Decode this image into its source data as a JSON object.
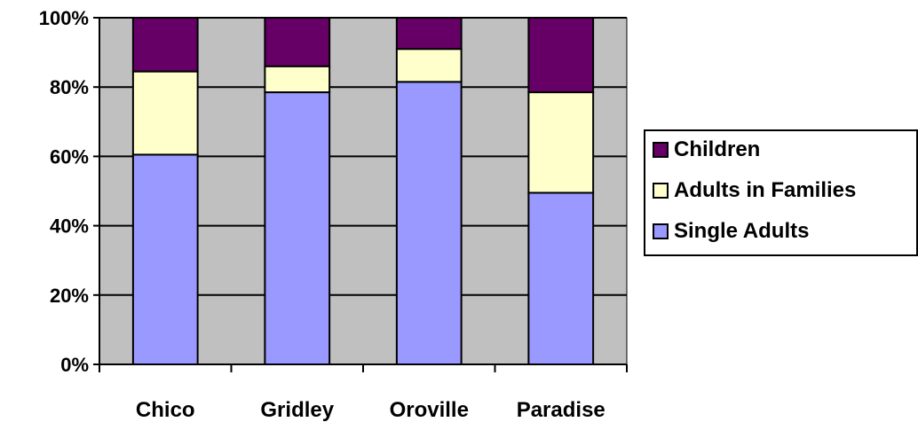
{
  "chart_data": {
    "type": "bar",
    "stacked": true,
    "percent_scale": true,
    "categories": [
      "Chico",
      "Gridley",
      "Oroville",
      "Paradise"
    ],
    "series": [
      {
        "name": "Single Adults",
        "values": [
          60.5,
          78.5,
          81.5,
          49.5
        ],
        "color": "#9999ff"
      },
      {
        "name": "Adults in Families",
        "values": [
          24,
          7.5,
          9.5,
          29
        ],
        "color": "#ffffcc"
      },
      {
        "name": "Children",
        "values": [
          15.5,
          14,
          9,
          21.5
        ],
        "color": "#660066"
      }
    ],
    "ylim": [
      0,
      100
    ],
    "yticks": [
      "0%",
      "20%",
      "40%",
      "60%",
      "80%",
      "100%"
    ],
    "plot_background": "#c0c0c0",
    "grid": true,
    "legend_position": "right",
    "legend_order": [
      "Children",
      "Adults in Families",
      "Single Adults"
    ],
    "title": "",
    "xlabel": "",
    "ylabel": ""
  }
}
